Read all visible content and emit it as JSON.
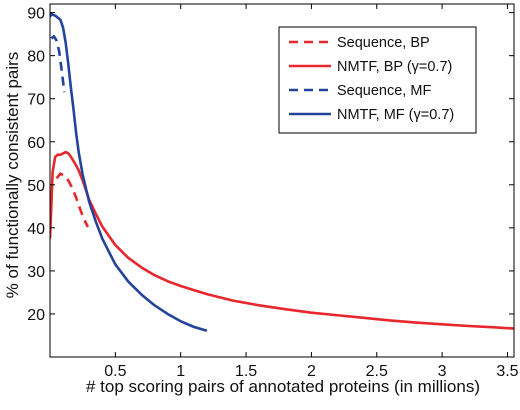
{
  "chart_data": {
    "type": "line",
    "title": "",
    "xlabel": "# top scoring pairs of annotated proteins (in millions)",
    "ylabel": "% of functionally consistent pairs",
    "xlim": [
      0,
      3.55
    ],
    "ylim": [
      10,
      92
    ],
    "xticks": [
      0.5,
      1.0,
      1.5,
      2.0,
      2.5,
      3.0,
      3.5
    ],
    "xtick_labels": [
      "0.5",
      "1",
      "1.5",
      "2",
      "2.5",
      "3",
      "3.5"
    ],
    "yticks": [
      20,
      30,
      40,
      50,
      60,
      70,
      80,
      90
    ],
    "ytick_labels": [
      "20",
      "30",
      "40",
      "50",
      "60",
      "70",
      "80",
      "90"
    ],
    "grid": false,
    "legend_position": "top-right",
    "series": [
      {
        "name": "Sequence, BP",
        "color": "#e8272d",
        "dash": "dashed",
        "x": [
          0.05,
          0.08,
          0.11,
          0.14,
          0.17,
          0.2,
          0.23,
          0.26,
          0.29
        ],
        "y": [
          51.5,
          52.6,
          52.1,
          51.0,
          49.3,
          47.0,
          44.4,
          42.0,
          40.2
        ]
      },
      {
        "name": "NMTF, BP (γ=0.7)",
        "color": "#e8272d",
        "dash": "solid",
        "x": [
          0.0,
          0.01,
          0.02,
          0.04,
          0.06,
          0.08,
          0.1,
          0.12,
          0.14,
          0.16,
          0.18,
          0.2,
          0.22,
          0.25,
          0.3,
          0.35,
          0.4,
          0.5,
          0.6,
          0.7,
          0.8,
          0.9,
          1.0,
          1.2,
          1.4,
          1.6,
          1.8,
          2.0,
          2.2,
          2.4,
          2.6,
          2.8,
          3.0,
          3.2,
          3.4,
          3.55
        ],
        "y": [
          37.5,
          45.0,
          53.0,
          56.5,
          57.0,
          57.0,
          57.3,
          57.6,
          57.3,
          56.5,
          55.5,
          54.5,
          53.3,
          51.0,
          46.5,
          43.3,
          40.3,
          36.0,
          33.0,
          30.8,
          29.0,
          27.6,
          26.5,
          24.6,
          23.1,
          22.0,
          21.1,
          20.3,
          19.7,
          19.1,
          18.5,
          18.0,
          17.6,
          17.2,
          16.9,
          16.6
        ]
      },
      {
        "name": "Sequence, MF",
        "color": "#24439b",
        "dash": "dashed",
        "x": [
          0.01,
          0.03,
          0.05,
          0.07,
          0.09,
          0.11
        ],
        "y": [
          84.0,
          84.5,
          83.5,
          81.0,
          76.5,
          71.5
        ]
      },
      {
        "name": "NMTF, MF (γ=0.7)",
        "color": "#24439b",
        "dash": "solid",
        "x": [
          0.0,
          0.01,
          0.02,
          0.04,
          0.06,
          0.08,
          0.1,
          0.12,
          0.14,
          0.16,
          0.18,
          0.2,
          0.22,
          0.25,
          0.3,
          0.35,
          0.4,
          0.5,
          0.6,
          0.7,
          0.8,
          0.9,
          1.0,
          1.1,
          1.2
        ],
        "y": [
          89.0,
          89.8,
          89.5,
          89.3,
          88.8,
          88.3,
          86.5,
          83.0,
          78.0,
          72.5,
          67.5,
          62.0,
          57.5,
          52.3,
          46.0,
          41.5,
          37.5,
          31.5,
          27.5,
          24.5,
          22.0,
          20.0,
          18.3,
          17.0,
          16.1
        ]
      }
    ]
  }
}
